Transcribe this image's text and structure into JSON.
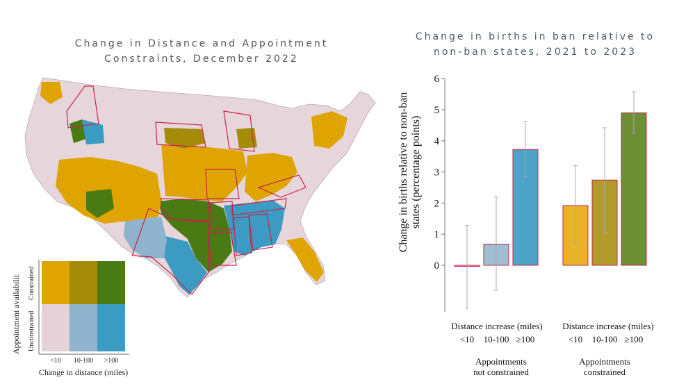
{
  "left_panel": {
    "title_line1": "Change in Distance and Appointment",
    "title_line2": "Constraints, December 2022",
    "legend": {
      "y_axis_label": "Appointment availabilit",
      "row_top_label": "Constrained",
      "row_bottom_label": "Unconstrained",
      "col_labels": [
        "<10",
        "10-100",
        ">100"
      ],
      "x_axis_label": "Change in distance (miles)",
      "colors_constrained": [
        "#e0a400",
        "#a48c0a",
        "#4a7a14"
      ],
      "colors_unconstrained": [
        "#e4d2d8",
        "#8fb3cc",
        "#3c9bc3"
      ]
    },
    "map_colors": {
      "base": "#e6d6dc",
      "border": "#c8234a",
      "yellow": "#e0a400",
      "olive": "#a48c0a",
      "green": "#4a7a14",
      "lightblue": "#8fb3cc",
      "blue": "#3c9bc3"
    }
  },
  "chart_data": {
    "type": "bar",
    "title": "Change in births in ban relative to non-ban states, 2021 to 2023",
    "title_line1": "Change in births in ban relative to",
    "title_line2": "non-ban states, 2021 to 2023",
    "ylabel_line1": "Change in births relative to non-ban",
    "ylabel_line2": "states (percentage points)",
    "ylim": [
      -1.5,
      6
    ],
    "yticks": [
      "0",
      "1",
      "2",
      "3",
      "4",
      "5",
      "6"
    ],
    "groups": [
      {
        "distance_label": "Distance increase (miles)",
        "appointment_line1": "Appointments",
        "appointment_line2": "not constrained",
        "categories": [
          "<10",
          "10-100",
          "≥100"
        ],
        "values": [
          -0.03,
          0.68,
          3.72
        ],
        "ci_low": [
          -1.38,
          -0.8,
          2.85
        ],
        "ci_high": [
          1.28,
          2.2,
          4.62
        ],
        "colors": [
          "#e2cbd3",
          "#9fbfd3",
          "#4ea3c9"
        ]
      },
      {
        "distance_label": "Distance increase (miles)",
        "appointment_line1": "Appointments",
        "appointment_line2": "constrained",
        "categories": [
          "<10",
          "10-100",
          "≥100"
        ],
        "values": [
          1.92,
          2.74,
          4.9
        ],
        "ci_low": [
          0.7,
          1.05,
          4.25
        ],
        "ci_high": [
          3.2,
          4.42,
          5.58
        ],
        "colors": [
          "#e8b22a",
          "#b39a2c",
          "#6e8f36"
        ]
      }
    ],
    "bar_border": "#c8234a"
  }
}
